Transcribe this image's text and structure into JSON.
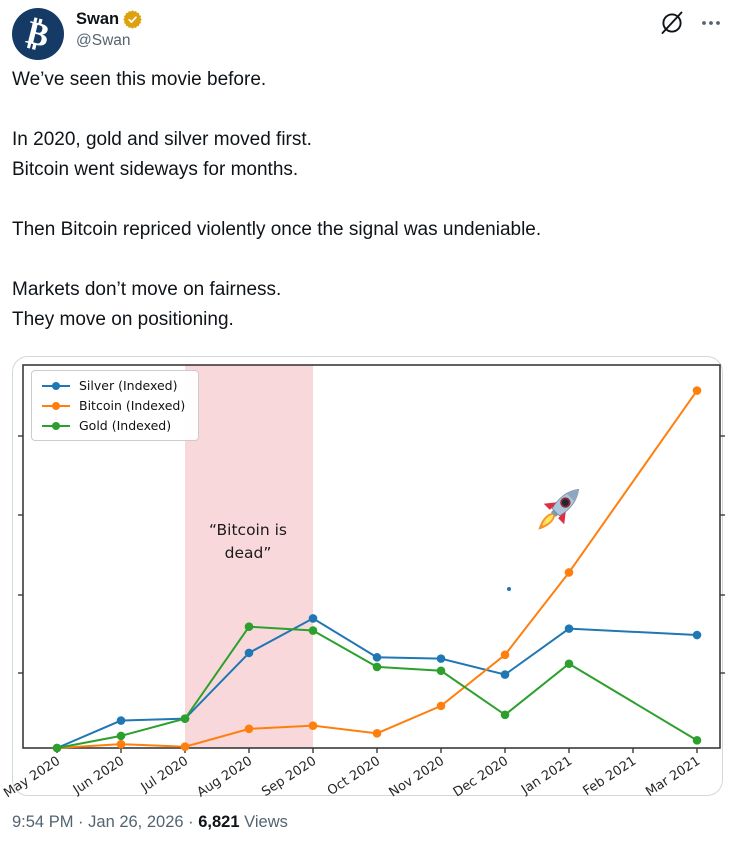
{
  "header": {
    "display_name": "Swan",
    "handle": "@Swan",
    "avatar_symbol": "₿",
    "badge_type": "gold verified"
  },
  "icons": {
    "avatar": "bitcoin-logo-icon",
    "badge": "gold-verified-badge-icon",
    "grok": "grok-icon",
    "more": "more-options-icon",
    "rocket": "rocket-emoji"
  },
  "tweet": {
    "paragraphs": [
      [
        "We’ve seen this movie before."
      ],
      [
        "In 2020, gold and silver moved first.",
        "Bitcoin went sideways for months."
      ],
      [
        "Then Bitcoin repriced violently once the signal was undeniable."
      ],
      [
        "Markets don’t move on fairness.",
        "They move on positioning."
      ]
    ]
  },
  "chart_data": {
    "type": "line",
    "title": "",
    "xlabel": "",
    "ylabel": "",
    "x": [
      "May 2020",
      "Jun 2020",
      "Jul 2020",
      "Aug 2020",
      "Sep 2020",
      "Oct 2020",
      "Nov 2020",
      "Dec 2020",
      "Jan 2021",
      "Feb 2021",
      "Mar 2021"
    ],
    "series": [
      {
        "name": "Silver (Indexed)",
        "color": "#1f77b4",
        "values": [
          100,
          143,
          146,
          249,
          303,
          242,
          240,
          215,
          287,
          null,
          277
        ]
      },
      {
        "name": "Bitcoin (Indexed)",
        "color": "#ff7f0e",
        "values": [
          100,
          106,
          102,
          130,
          135,
          123,
          166,
          246,
          375,
          null,
          660
        ]
      },
      {
        "name": "Gold (Indexed)",
        "color": "#2ca02c",
        "values": [
          100,
          119,
          146,
          290,
          284,
          227,
          221,
          152,
          232,
          null,
          112
        ]
      }
    ],
    "ylim": [
      100,
      700
    ],
    "y_ticks_labeled": false,
    "grid": false,
    "legend_position": "upper-left",
    "shaded_region": {
      "from": "Jul 2020",
      "to": "Sep 2020",
      "color": "#f9d8db"
    },
    "annotation": {
      "lines": [
        "“Bitcoin is",
        "dead”"
      ],
      "near_x": "Aug 2020"
    },
    "rocket_emoji_near": "Jan 2021 upper area"
  },
  "footer": {
    "time": "9:54 PM",
    "date": "Jan 26, 2026",
    "separator": "·",
    "views_count": "6,821",
    "views_label": "Views"
  }
}
